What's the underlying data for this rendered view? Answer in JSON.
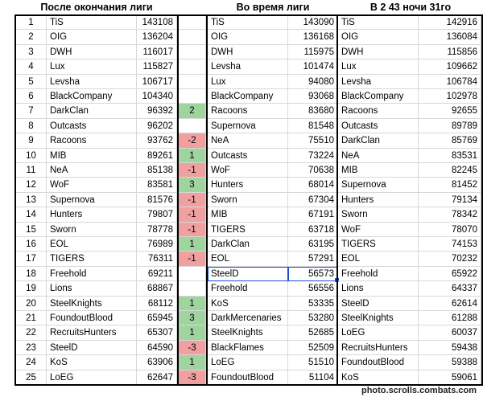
{
  "headers": {
    "after": "После окончания лиги",
    "during": "Во время лиги",
    "at": "В 2 43 ночи 31го"
  },
  "rows": [
    {
      "n": "1",
      "a_name": "TiS",
      "a_score": "143108",
      "delta": "",
      "d_name": "TiS",
      "d_score": "143090",
      "c_name": "TiS",
      "c_score": "142916"
    },
    {
      "n": "2",
      "a_name": "OIG",
      "a_score": "136204",
      "delta": "",
      "d_name": "OIG",
      "d_score": "136168",
      "c_name": "OIG",
      "c_score": "136084"
    },
    {
      "n": "3",
      "a_name": "DWH",
      "a_score": "116017",
      "delta": "",
      "d_name": "DWH",
      "d_score": "115975",
      "c_name": "DWH",
      "c_score": "115856"
    },
    {
      "n": "4",
      "a_name": "Lux",
      "a_score": "115827",
      "delta": "",
      "d_name": "Levsha",
      "d_score": "101474",
      "c_name": "Lux",
      "c_score": "109662"
    },
    {
      "n": "5",
      "a_name": "Levsha",
      "a_score": "106717",
      "delta": "",
      "d_name": "Lux",
      "d_score": "94080",
      "c_name": "Levsha",
      "c_score": "106784"
    },
    {
      "n": "6",
      "a_name": "BlackCompany",
      "a_score": "104340",
      "delta": "",
      "d_name": "BlackCompany",
      "d_score": "93068",
      "c_name": "BlackCompany",
      "c_score": "102978"
    },
    {
      "n": "7",
      "a_name": "DarkClan",
      "a_score": "96392",
      "delta": "2",
      "d_name": "Racoons",
      "d_score": "83680",
      "c_name": "Racoons",
      "c_score": "92655"
    },
    {
      "n": "8",
      "a_name": "Outcasts",
      "a_score": "96202",
      "delta": "",
      "d_name": "Supernova",
      "d_score": "81548",
      "c_name": "Outcasts",
      "c_score": "89789"
    },
    {
      "n": "9",
      "a_name": "Racoons",
      "a_score": "93762",
      "delta": "-2",
      "d_name": "NeA",
      "d_score": "75510",
      "c_name": "DarkClan",
      "c_score": "85769"
    },
    {
      "n": "10",
      "a_name": "MIB",
      "a_score": "89261",
      "delta": "1",
      "d_name": "Outcasts",
      "d_score": "73224",
      "c_name": "NeA",
      "c_score": "83531"
    },
    {
      "n": "11",
      "a_name": "NeA",
      "a_score": "85138",
      "delta": "-1",
      "d_name": "WoF",
      "d_score": "70638",
      "c_name": "MIB",
      "c_score": "82245"
    },
    {
      "n": "12",
      "a_name": "WoF",
      "a_score": "83581",
      "delta": "3",
      "d_name": "Hunters",
      "d_score": "68014",
      "c_name": "Supernova",
      "c_score": "81452"
    },
    {
      "n": "13",
      "a_name": "Supernova",
      "a_score": "81576",
      "delta": "-1",
      "d_name": "Sworn",
      "d_score": "67304",
      "c_name": "Hunters",
      "c_score": "79134"
    },
    {
      "n": "14",
      "a_name": "Hunters",
      "a_score": "79807",
      "delta": "-1",
      "d_name": "MIB",
      "d_score": "67191",
      "c_name": "Sworn",
      "c_score": "78342"
    },
    {
      "n": "15",
      "a_name": "Sworn",
      "a_score": "78778",
      "delta": "-1",
      "d_name": "TIGERS",
      "d_score": "63718",
      "c_name": "WoF",
      "c_score": "78070"
    },
    {
      "n": "16",
      "a_name": "EOL",
      "a_score": "76989",
      "delta": "1",
      "d_name": "DarkClan",
      "d_score": "63195",
      "c_name": "TIGERS",
      "c_score": "74153"
    },
    {
      "n": "17",
      "a_name": "TIGERS",
      "a_score": "76311",
      "delta": "-1",
      "d_name": "EOL",
      "d_score": "57291",
      "c_name": "EOL",
      "c_score": "70232"
    },
    {
      "n": "18",
      "a_name": "Freehold",
      "a_score": "69211",
      "delta": "",
      "d_name": "SteelD",
      "d_score": "56573",
      "c_name": "Freehold",
      "c_score": "65922"
    },
    {
      "n": "19",
      "a_name": "Lions",
      "a_score": "68867",
      "delta": "",
      "d_name": "Freehold",
      "d_score": "56556",
      "c_name": "Lions",
      "c_score": "64337"
    },
    {
      "n": "20",
      "a_name": "SteelKnights",
      "a_score": "68112",
      "delta": "1",
      "d_name": "KoS",
      "d_score": "53335",
      "c_name": "SteelD",
      "c_score": "62614"
    },
    {
      "n": "21",
      "a_name": "FoundoutBlood",
      "a_score": "65945",
      "delta": "3",
      "d_name": "DarkMercenaries",
      "d_score": "53280",
      "c_name": "SteelKnights",
      "c_score": "61288"
    },
    {
      "n": "22",
      "a_name": "RecruitsHunters",
      "a_score": "65307",
      "delta": "1",
      "d_name": "SteelKnights",
      "d_score": "52685",
      "c_name": "LoEG",
      "c_score": "60037"
    },
    {
      "n": "23",
      "a_name": "SteelD",
      "a_score": "64590",
      "delta": "-3",
      "d_name": "BlackFlames",
      "d_score": "52509",
      "c_name": "RecruitsHunters",
      "c_score": "59438"
    },
    {
      "n": "24",
      "a_name": "KoS",
      "a_score": "63906",
      "delta": "1",
      "d_name": "LoEG",
      "d_score": "51510",
      "c_name": "FoundoutBlood",
      "c_score": "59388"
    },
    {
      "n": "25",
      "a_name": "LoEG",
      "a_score": "62647",
      "delta": "-3",
      "d_name": "FoundoutBlood",
      "d_score": "51104",
      "c_name": "KoS",
      "c_score": "59061"
    }
  ],
  "selected_cell": "SteelD 56573",
  "colors": {
    "positive": "#9fd49f",
    "negative": "#f0a0a0",
    "selection": "#1a4fd6",
    "grid": "#d8d8d8"
  },
  "watermark": "photo.scrolls.combats.com"
}
